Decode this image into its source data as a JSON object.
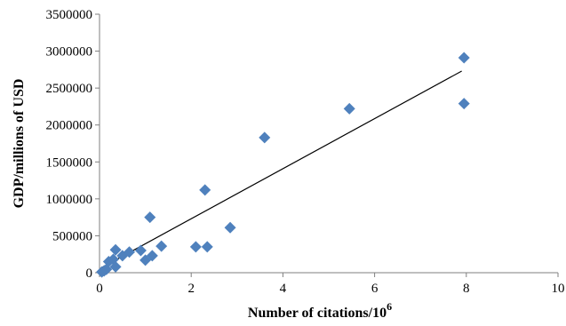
{
  "chart_data": {
    "type": "scatter",
    "title": "",
    "xlabel": "Number of citations/10",
    "xlabel_superscript": "6",
    "ylabel": "GDP/millions of USD",
    "xlim": [
      0,
      10
    ],
    "ylim": [
      0,
      3500000
    ],
    "x_ticks": [
      0,
      2,
      4,
      6,
      8,
      10
    ],
    "y_ticks": [
      0,
      500000,
      1000000,
      1500000,
      2000000,
      2500000,
      3000000,
      3500000
    ],
    "x_tick_labels": [
      "0",
      "2",
      "4",
      "6",
      "8",
      "10"
    ],
    "y_tick_labels": [
      "0",
      "500000",
      "1000000",
      "1500000",
      "2000000",
      "2500000",
      "3000000",
      "3500000"
    ],
    "grid": "none",
    "legend": "none",
    "marker": "diamond",
    "colors": {
      "points": "#4F81BD",
      "trendline": "#000000",
      "axes": "#7f7f7f"
    },
    "series": [
      {
        "points": [
          {
            "x": 0.05,
            "y": 10000
          },
          {
            "x": 0.1,
            "y": 25000
          },
          {
            "x": 0.15,
            "y": 45000
          },
          {
            "x": 0.2,
            "y": 150000
          },
          {
            "x": 0.3,
            "y": 180000
          },
          {
            "x": 0.35,
            "y": 80000
          },
          {
            "x": 0.35,
            "y": 310000
          },
          {
            "x": 0.5,
            "y": 230000
          },
          {
            "x": 0.65,
            "y": 280000
          },
          {
            "x": 0.9,
            "y": 300000
          },
          {
            "x": 1.0,
            "y": 170000
          },
          {
            "x": 1.1,
            "y": 750000
          },
          {
            "x": 1.15,
            "y": 230000
          },
          {
            "x": 1.35,
            "y": 360000
          },
          {
            "x": 2.1,
            "y": 350000
          },
          {
            "x": 2.3,
            "y": 1120000
          },
          {
            "x": 2.35,
            "y": 350000
          },
          {
            "x": 2.85,
            "y": 610000
          },
          {
            "x": 3.6,
            "y": 1830000
          },
          {
            "x": 5.45,
            "y": 2220000
          },
          {
            "x": 7.95,
            "y": 2910000
          },
          {
            "x": 7.95,
            "y": 2290000
          }
        ]
      }
    ],
    "trendline": {
      "type": "linear",
      "x": [
        0.05,
        7.9
      ],
      "y": [
        70000,
        2730000
      ]
    }
  }
}
